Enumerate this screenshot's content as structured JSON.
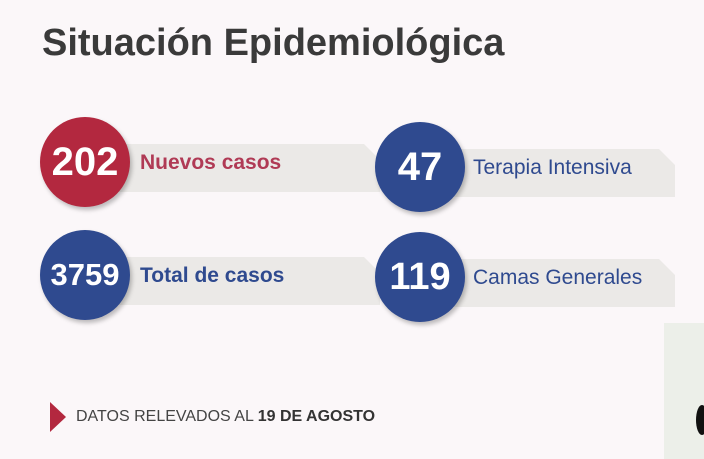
{
  "title": "Situación Epidemiológica",
  "stats": [
    {
      "value": "202",
      "label": "Nuevos casos",
      "color": "#b3283f",
      "text_color": "#b03a55"
    },
    {
      "value": "47",
      "label": "Terapia Intensiva",
      "color": "#2f4a8f",
      "text_color": "#2f4a8f"
    },
    {
      "value": "3759",
      "label": "Total de casos",
      "color": "#2f4a8f",
      "text_color": "#2f4a8f"
    },
    {
      "value": "119",
      "label": "Camas Generales",
      "color": "#2f4a8f",
      "text_color": "#2f4a8f"
    }
  ],
  "footer": {
    "prefix": "DATOS RELEVADOS AL ",
    "date": "19 DE AGOSTO"
  }
}
